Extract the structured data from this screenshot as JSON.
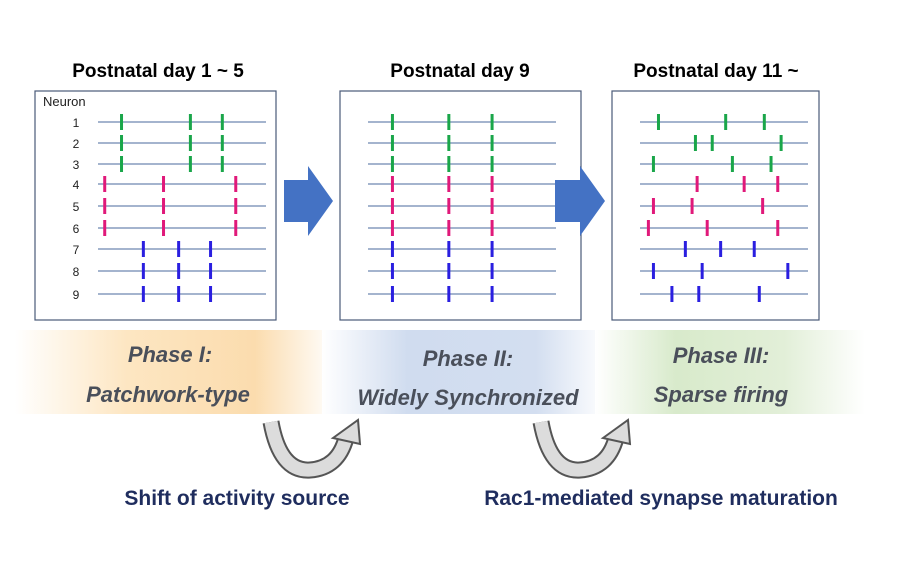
{
  "panels": [
    {
      "title": "Postnatal day 1 ~ 5",
      "axis_label": "Neuron",
      "neuron_labels": [
        "1",
        "2",
        "3",
        "4",
        "5",
        "6",
        "7",
        "8",
        "9"
      ],
      "spike_times": [
        [
          14,
          55,
          74
        ],
        [
          14,
          55,
          74
        ],
        [
          14,
          55,
          74
        ],
        [
          4,
          39,
          82
        ],
        [
          4,
          39,
          82
        ],
        [
          4,
          39,
          82
        ],
        [
          27,
          48,
          67
        ],
        [
          27,
          48,
          67
        ],
        [
          27,
          48,
          67
        ]
      ]
    },
    {
      "title": "Postnatal day 9",
      "spike_times": [
        [
          13,
          43,
          66
        ],
        [
          13,
          43,
          66
        ],
        [
          13,
          43,
          66
        ],
        [
          13,
          43,
          66
        ],
        [
          13,
          43,
          66
        ],
        [
          13,
          43,
          66
        ],
        [
          13,
          43,
          66
        ],
        [
          13,
          43,
          66
        ],
        [
          13,
          43,
          66
        ]
      ]
    },
    {
      "title": "Postnatal day 11 ~",
      "spike_times": [
        [
          11,
          51,
          74
        ],
        [
          33,
          43,
          84
        ],
        [
          8,
          55,
          78
        ],
        [
          34,
          62,
          82
        ],
        [
          8,
          31,
          73
        ],
        [
          5,
          40,
          82
        ],
        [
          27,
          48,
          68
        ],
        [
          8,
          37,
          88
        ],
        [
          19,
          35,
          71
        ]
      ]
    }
  ],
  "row_colors": [
    "#1aa64a",
    "#1aa64a",
    "#1aa64a",
    "#e0197a",
    "#e0197a",
    "#e0197a",
    "#2a1fe0",
    "#2a1fe0",
    "#2a1fe0"
  ],
  "phases": [
    {
      "line1": "Phase  I:",
      "line2": "Patchwork-type",
      "color": "#fbd9a6"
    },
    {
      "line1": "Phase II:",
      "line2": "Widely Synchronized",
      "color": "#c9d6ec"
    },
    {
      "line1": "Phase III:",
      "line2": "Sparse firing",
      "color": "#d3e6c6"
    }
  ],
  "transitions": [
    {
      "label": "Shift of activity source"
    },
    {
      "label": "Rac1-mediated synapse maturation"
    }
  ],
  "colors": {
    "arrow": "#4472c4",
    "raster_line": "#4a6a9c",
    "bottom_text": "#1f2d5e"
  }
}
